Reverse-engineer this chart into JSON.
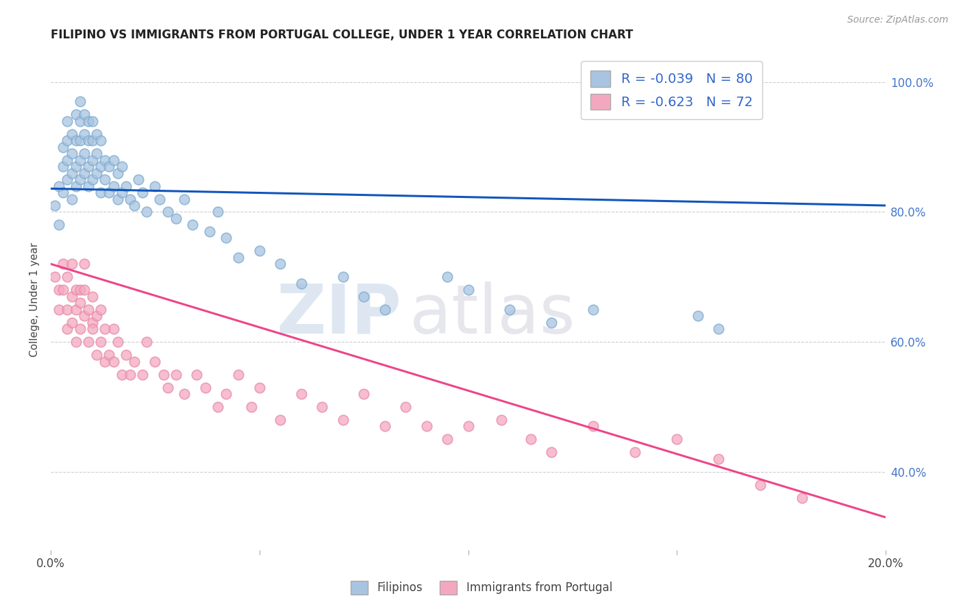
{
  "title": "FILIPINO VS IMMIGRANTS FROM PORTUGAL COLLEGE, UNDER 1 YEAR CORRELATION CHART",
  "source": "Source: ZipAtlas.com",
  "ylabel": "College, Under 1 year",
  "legend_r1": "R = -0.039",
  "legend_n1": "N = 80",
  "legend_r2": "R = -0.623",
  "legend_n2": "N = 72",
  "blue_color": "#A8C4E0",
  "pink_color": "#F4A8C0",
  "line_blue": "#1155BB",
  "line_pink": "#EE4488",
  "ytick_labels": [
    "40.0%",
    "60.0%",
    "80.0%",
    "100.0%"
  ],
  "ytick_values": [
    0.4,
    0.6,
    0.8,
    1.0
  ],
  "blue_scatter_x": [
    0.001,
    0.002,
    0.002,
    0.003,
    0.003,
    0.003,
    0.004,
    0.004,
    0.004,
    0.004,
    0.005,
    0.005,
    0.005,
    0.005,
    0.006,
    0.006,
    0.006,
    0.006,
    0.007,
    0.007,
    0.007,
    0.007,
    0.007,
    0.008,
    0.008,
    0.008,
    0.008,
    0.009,
    0.009,
    0.009,
    0.009,
    0.01,
    0.01,
    0.01,
    0.01,
    0.011,
    0.011,
    0.011,
    0.012,
    0.012,
    0.012,
    0.013,
    0.013,
    0.014,
    0.014,
    0.015,
    0.015,
    0.016,
    0.016,
    0.017,
    0.017,
    0.018,
    0.019,
    0.02,
    0.021,
    0.022,
    0.023,
    0.025,
    0.026,
    0.028,
    0.03,
    0.032,
    0.034,
    0.038,
    0.04,
    0.042,
    0.045,
    0.05,
    0.055,
    0.06,
    0.07,
    0.075,
    0.08,
    0.095,
    0.1,
    0.11,
    0.12,
    0.13,
    0.155,
    0.16
  ],
  "blue_scatter_y": [
    0.81,
    0.84,
    0.78,
    0.83,
    0.87,
    0.9,
    0.85,
    0.88,
    0.91,
    0.94,
    0.82,
    0.86,
    0.89,
    0.92,
    0.84,
    0.87,
    0.91,
    0.95,
    0.85,
    0.88,
    0.91,
    0.94,
    0.97,
    0.86,
    0.89,
    0.92,
    0.95,
    0.84,
    0.87,
    0.91,
    0.94,
    0.85,
    0.88,
    0.91,
    0.94,
    0.86,
    0.89,
    0.92,
    0.83,
    0.87,
    0.91,
    0.85,
    0.88,
    0.83,
    0.87,
    0.84,
    0.88,
    0.82,
    0.86,
    0.83,
    0.87,
    0.84,
    0.82,
    0.81,
    0.85,
    0.83,
    0.8,
    0.84,
    0.82,
    0.8,
    0.79,
    0.82,
    0.78,
    0.77,
    0.8,
    0.76,
    0.73,
    0.74,
    0.72,
    0.69,
    0.7,
    0.67,
    0.65,
    0.7,
    0.68,
    0.65,
    0.63,
    0.65,
    0.64,
    0.62
  ],
  "pink_scatter_x": [
    0.001,
    0.002,
    0.002,
    0.003,
    0.003,
    0.004,
    0.004,
    0.004,
    0.005,
    0.005,
    0.005,
    0.006,
    0.006,
    0.006,
    0.007,
    0.007,
    0.007,
    0.008,
    0.008,
    0.008,
    0.009,
    0.009,
    0.01,
    0.01,
    0.01,
    0.011,
    0.011,
    0.012,
    0.012,
    0.013,
    0.013,
    0.014,
    0.015,
    0.015,
    0.016,
    0.017,
    0.018,
    0.019,
    0.02,
    0.022,
    0.023,
    0.025,
    0.027,
    0.028,
    0.03,
    0.032,
    0.035,
    0.037,
    0.04,
    0.042,
    0.045,
    0.048,
    0.05,
    0.055,
    0.06,
    0.065,
    0.07,
    0.075,
    0.08,
    0.085,
    0.09,
    0.095,
    0.1,
    0.108,
    0.115,
    0.12,
    0.13,
    0.14,
    0.15,
    0.16,
    0.17,
    0.18
  ],
  "pink_scatter_y": [
    0.7,
    0.68,
    0.65,
    0.72,
    0.68,
    0.65,
    0.7,
    0.62,
    0.67,
    0.63,
    0.72,
    0.68,
    0.65,
    0.6,
    0.66,
    0.62,
    0.68,
    0.64,
    0.68,
    0.72,
    0.65,
    0.6,
    0.63,
    0.67,
    0.62,
    0.64,
    0.58,
    0.65,
    0.6,
    0.62,
    0.57,
    0.58,
    0.62,
    0.57,
    0.6,
    0.55,
    0.58,
    0.55,
    0.57,
    0.55,
    0.6,
    0.57,
    0.55,
    0.53,
    0.55,
    0.52,
    0.55,
    0.53,
    0.5,
    0.52,
    0.55,
    0.5,
    0.53,
    0.48,
    0.52,
    0.5,
    0.48,
    0.52,
    0.47,
    0.5,
    0.47,
    0.45,
    0.47,
    0.48,
    0.45,
    0.43,
    0.47,
    0.43,
    0.45,
    0.42,
    0.38,
    0.36
  ],
  "blue_line_x": [
    0.0,
    0.2
  ],
  "blue_line_y": [
    0.836,
    0.81
  ],
  "pink_line_x": [
    0.0,
    0.2
  ],
  "pink_line_y": [
    0.72,
    0.33
  ],
  "xlim": [
    0.0,
    0.2
  ],
  "ylim": [
    0.28,
    1.05
  ],
  "xticks": [
    0.0,
    0.05,
    0.1,
    0.15,
    0.2
  ],
  "xtick_labels_show": [
    "0.0%",
    "",
    "",
    "",
    "20.0%"
  ]
}
